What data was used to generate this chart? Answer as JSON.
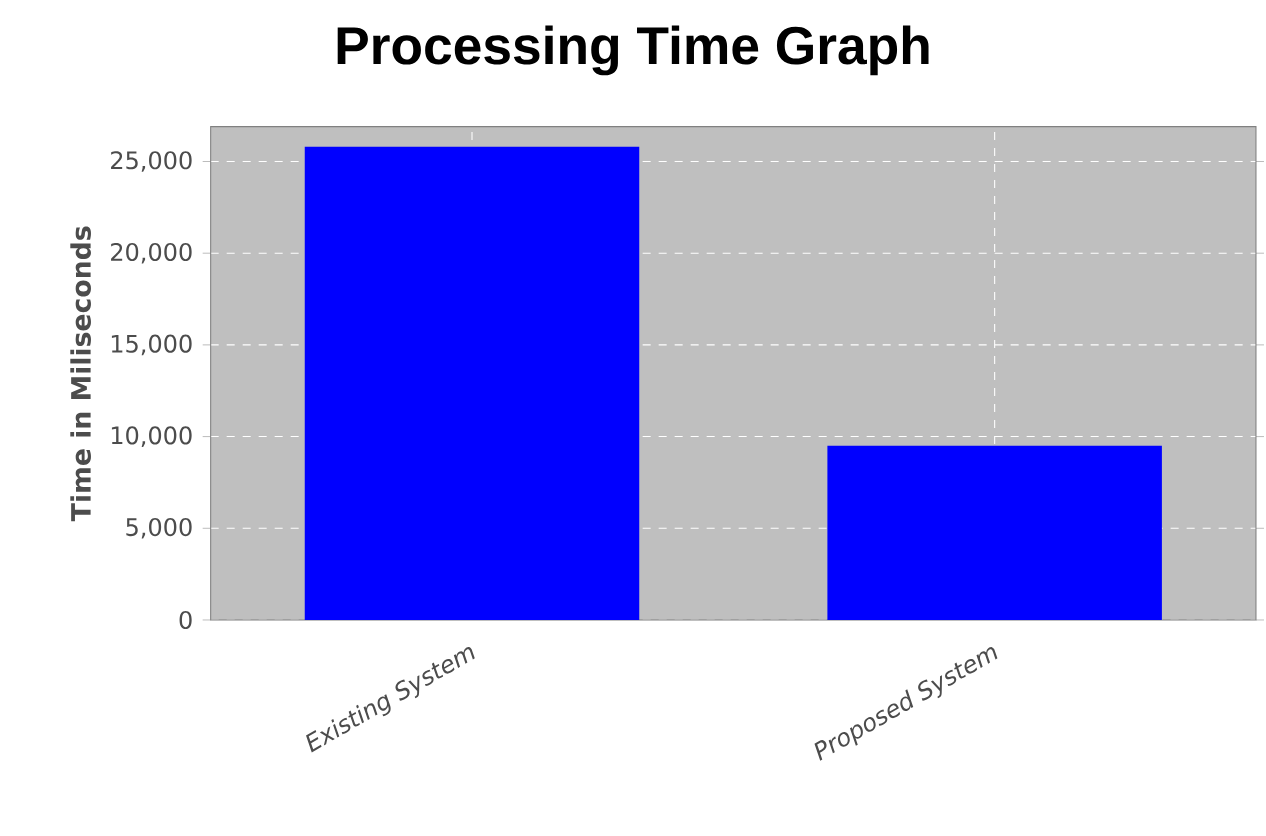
{
  "chart_data": {
    "type": "bar",
    "title": "Processing Time Graph",
    "ylabel": "Time in Miliseconds",
    "categories": [
      "Existing System",
      "Proposed System"
    ],
    "values": [
      25800,
      9500
    ],
    "color": "#0000ff",
    "ylim": [
      0,
      26900
    ],
    "yticks": [
      {
        "value": 0,
        "label": "0"
      },
      {
        "value": 5000,
        "label": "5,000"
      },
      {
        "value": 10000,
        "label": "10,000"
      },
      {
        "value": 15000,
        "label": "15,000"
      },
      {
        "value": 20000,
        "label": "20,000"
      },
      {
        "value": 25000,
        "label": "25,000"
      }
    ],
    "grid": true
  }
}
